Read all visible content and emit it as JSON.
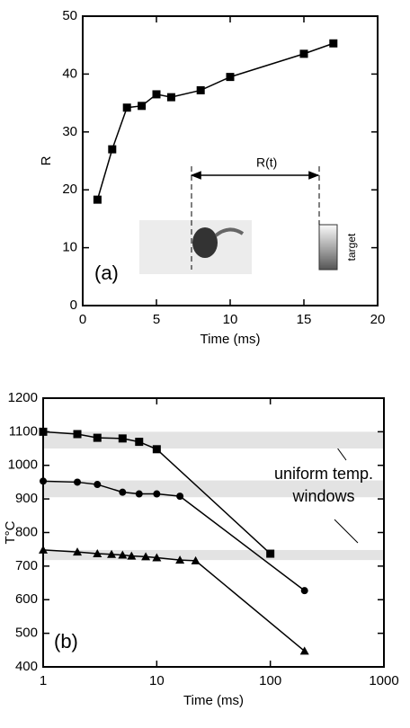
{
  "chart_data": [
    {
      "type": "line",
      "xlabel": "Time (ms)",
      "ylabel": "R",
      "xlim": [
        0,
        20
      ],
      "xticks": [
        0,
        5,
        10,
        15,
        20
      ],
      "ylim": [
        0,
        50
      ],
      "yticks": [
        0,
        10,
        20,
        30,
        40,
        50
      ],
      "series": [
        {
          "marker": "square",
          "color": "#000000",
          "x": [
            1,
            2,
            3,
            4,
            5,
            6,
            8,
            10,
            15,
            17
          ],
          "values": [
            18.3,
            27,
            34.2,
            34.5,
            36.5,
            36,
            37.2,
            39.5,
            43.5,
            45.3
          ]
        }
      ],
      "annotations": [
        "(a)",
        "R(t)",
        "target"
      ]
    },
    {
      "type": "line",
      "xlabel": "Time (ms)",
      "ylabel": "T°C",
      "log_x": true,
      "xlim": [
        1,
        1000
      ],
      "xticks": [
        1,
        10,
        100,
        1000
      ],
      "ylim": [
        400,
        1200
      ],
      "yticks": [
        400,
        500,
        600,
        700,
        800,
        900,
        1000,
        1100,
        1200
      ],
      "bands": [
        [
          1050,
          1100
        ],
        [
          905,
          955
        ],
        [
          718,
          748
        ]
      ],
      "band_color": "#e3e3e3",
      "series": [
        {
          "marker": "square",
          "color": "#000000",
          "x": [
            1,
            2,
            3,
            5,
            7,
            10,
            100
          ],
          "values": [
            1100,
            1093,
            1082,
            1080,
            1070,
            1048,
            737
          ]
        },
        {
          "marker": "circle",
          "color": "#000000",
          "x": [
            1,
            2,
            3,
            5,
            7,
            10,
            16,
            200
          ],
          "values": [
            953,
            950,
            943,
            920,
            915,
            915,
            908,
            627
          ]
        },
        {
          "marker": "triangle",
          "color": "#000000",
          "x": [
            1,
            2,
            3,
            4,
            5,
            6,
            8,
            10,
            16,
            22,
            200
          ],
          "values": [
            748,
            742,
            737,
            735,
            733,
            730,
            728,
            725,
            718,
            716,
            447
          ]
        }
      ],
      "annotations": [
        "(b)",
        "uniform temp.",
        "windows"
      ]
    }
  ]
}
